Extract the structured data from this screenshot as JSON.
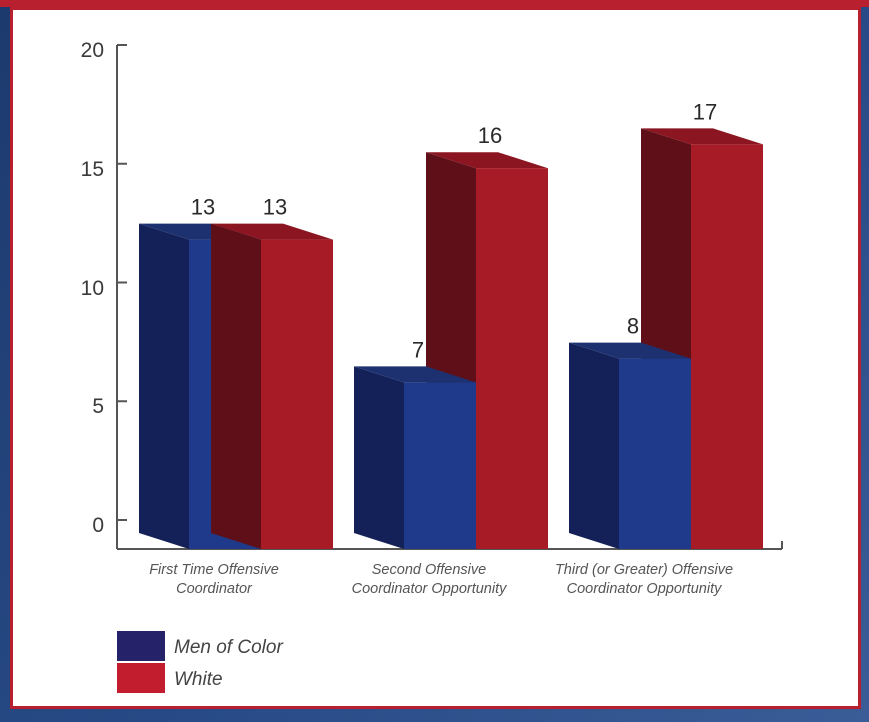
{
  "chart_data": {
    "type": "bar",
    "categories": [
      [
        "First Time Offensive",
        "Coordinator"
      ],
      [
        "Second Offensive",
        "Coordinator Opportunity"
      ],
      [
        "Third (or Greater) Offensive",
        "Coordinator Opportunity"
      ]
    ],
    "series": [
      {
        "name": "Men of Color",
        "values": [
          13,
          7,
          8
        ]
      },
      {
        "name": "White",
        "values": [
          13,
          16,
          17
        ]
      }
    ],
    "ylim": [
      0,
      20
    ],
    "yticks": [
      0,
      5,
      10,
      15,
      20
    ],
    "title": "",
    "xlabel": "",
    "ylabel": "",
    "legend_position": "bottom-left",
    "grid": false,
    "colors": {
      "men_of_color": {
        "front": "#1f3a8a",
        "side": "#142158",
        "top": "#1d3070"
      },
      "white": {
        "front": "#a71b27",
        "side": "#5e0f18",
        "top": "#8b1520"
      },
      "legend_men_of_color": "#25226a",
      "legend_white": "#c21d2e"
    }
  }
}
